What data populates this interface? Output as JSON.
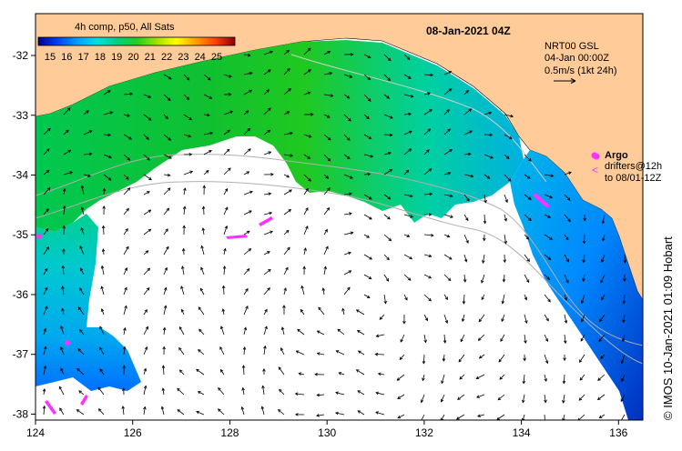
{
  "map": {
    "date_label": "08-Jan-2021 04Z",
    "colorbar": {
      "title": "4h comp, p50, All Sats",
      "labels": [
        "15",
        "16",
        "17",
        "18",
        "19",
        "20",
        "21",
        "22",
        "23",
        "24",
        "25"
      ],
      "colors": [
        "#00008b",
        "#0040ff",
        "#00a0ff",
        "#00e0e0",
        "#00d080",
        "#20d020",
        "#a0e000",
        "#ffff00",
        "#ffa000",
        "#ff4000",
        "#8b0000"
      ]
    },
    "current_info": {
      "line1": "NRT00 GSL",
      "line2": "04-Jan 00:00Z",
      "line3": "0.5m/s (1kt 24h)"
    },
    "legend": {
      "argo_label": "Argo",
      "drifters_label": "drifters@12h",
      "drifters_sub": "to 08/01-12Z"
    },
    "credit": "© IMOS 10-Jan-2021 01:09 Hobart",
    "x_ticks": [
      "124",
      "126",
      "128",
      "130",
      "132",
      "134",
      "136"
    ],
    "y_ticks": [
      "-32",
      "-33",
      "-34",
      "-35",
      "-36",
      "-37",
      "-38"
    ],
    "colors": {
      "land": "#ffcc99",
      "ocean_blank": "#ffffff",
      "vector": "#000000",
      "markers": "#ff33ff",
      "isobath": "#b0b0b0"
    }
  },
  "chart_data": {
    "type": "map",
    "x_range": [
      124,
      136.5
    ],
    "y_range": [
      -38.1,
      -31.3
    ],
    "x_ticks": [
      124,
      126,
      128,
      130,
      132,
      134,
      136
    ],
    "y_ticks": [
      -32,
      -33,
      -34,
      -35,
      -36,
      -37,
      -38
    ],
    "colorbar_range": [
      15,
      25
    ]
  }
}
